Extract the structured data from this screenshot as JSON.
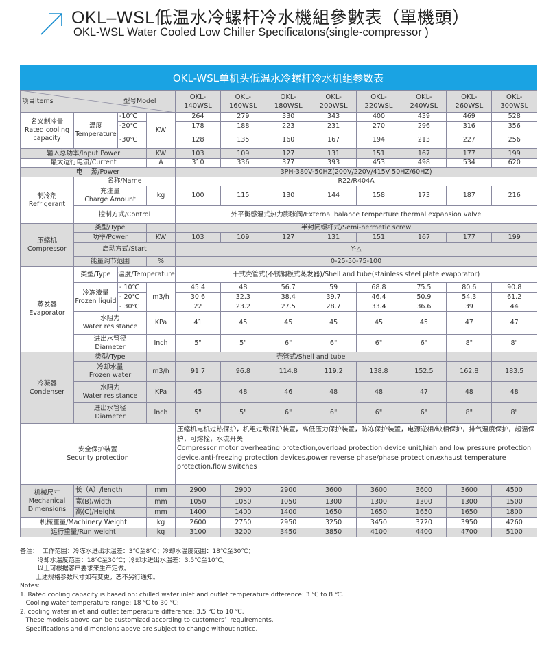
{
  "header": {
    "title_cn": "OKL–WSL低温水冷螺杆冷水機組參數表（單機頭）",
    "title_en": "OKL-WSL Water Cooled Low Chiller Specificatons(single-compressor )",
    "band": "OKL-WSL单机头低温水冷螺杆冷水机组参数表",
    "accent": "#1aa3e3"
  },
  "table": {
    "items": "项目Items",
    "model": "型号Model",
    "models": [
      "OKL-\n140WSL",
      "OKL-\n160WSL",
      "OKL-\n180WSL",
      "OKL-\n200WSL",
      "OKL-\n220WSL",
      "OKL-\n240WSL",
      "OKL-\n260WSL",
      "OKL-\n300WSL"
    ],
    "rated": {
      "label_cn": "名义制冷量",
      "label_en": "Rated cooling capacity",
      "temp_cn": "温度",
      "temp_en": "Temperature",
      "t1": "-10℃",
      "t2": "-20℃",
      "t3": "-30℃",
      "unit": "KW",
      "v1": [
        "264",
        "279",
        "330",
        "343",
        "400",
        "439",
        "469",
        "528"
      ],
      "v2": [
        "178",
        "188",
        "223",
        "231",
        "270",
        "296",
        "316",
        "356"
      ],
      "v3": [
        "128",
        "135",
        "160",
        "167",
        "194",
        "213",
        "227",
        "256"
      ]
    },
    "input_power": {
      "label": "输入总功率/Input Power",
      "unit": "KW",
      "values": [
        "103",
        "109",
        "127",
        "131",
        "151",
        "167",
        "177",
        "199"
      ]
    },
    "current": {
      "label": "最大运行电流/Current",
      "unit": "A",
      "values": [
        "310",
        "336",
        "377",
        "393",
        "453",
        "498",
        "534",
        "620"
      ]
    },
    "power": {
      "label": "电　 源/Power",
      "value": "3PH-380V-50HZ(200V/220V/415V  50HZ/60HZ)"
    },
    "refrigerant": {
      "label_cn": "制冷剂",
      "label_en": "Refrigerant",
      "name_label": "名称/Name",
      "name_value": "R22/R404A",
      "charge_cn": "充注量",
      "charge_en": "Charge Amount",
      "unit": "kg",
      "charge": [
        "100",
        "115",
        "130",
        "144",
        "158",
        "173",
        "187",
        "216"
      ],
      "control_label": "控制方式/Control",
      "control_value": "外平衡感温式热力膨胀阀/External balance temperture thermal expansion valve"
    },
    "compressor": {
      "label_cn": "压缩机",
      "label_en": "Compressor",
      "type_label": "类型/Type",
      "type_value": "半封闭螺杆式/Semi-hermetic screw",
      "power_label": "功率/Power",
      "unit": "KW",
      "power": [
        "103",
        "109",
        "127",
        "131",
        "151",
        "167",
        "177",
        "199"
      ],
      "start_label": "启动方式/Start",
      "start_value": "Y-△",
      "energy_label": "能量调节范围",
      "energy_unit": "%",
      "energy_value": "0-25-50-75-100"
    },
    "evaporator": {
      "label_cn": "蒸发器",
      "label_en": "Evaporator",
      "type_label": "类型/Type",
      "temp_label": "温度/Temperature",
      "type_value": "干式壳管式(不锈钢板式蒸发器)/Shell and tube(stainless steel plate evaporator)",
      "frozen_cn": "冷冻液量",
      "frozen_en": "Frozen liquid",
      "t1": "- 10℃",
      "t2": "- 20℃",
      "t3": "- 30℃",
      "unit": "m3/h",
      "f1": [
        "45.4",
        "48",
        "56.7",
        "59",
        "68.8",
        "75.5",
        "80.6",
        "90.8"
      ],
      "f2": [
        "30.6",
        "32.3",
        "38.4",
        "39.7",
        "46.4",
        "50.9",
        "54.3",
        "61.2"
      ],
      "f3": [
        "22",
        "23.2",
        "27.5",
        "28.7",
        "33.4",
        "36.6",
        "39",
        "44"
      ],
      "res_cn": "水阻力",
      "res_en": "Water resistance",
      "res_unit": "KPa",
      "res": [
        "41",
        "45",
        "45",
        "45",
        "45",
        "45",
        "47",
        "47"
      ],
      "dia_cn": "进出水管径",
      "dia_en": "Diameter",
      "dia_unit": "Inch",
      "dia": [
        "5\"",
        "5\"",
        "6\"",
        "6\"",
        "6\"",
        "6\"",
        "8\"",
        "8\""
      ]
    },
    "condenser": {
      "label_cn": "冷凝器",
      "label_en": "Condenser",
      "type_label": "类型/Type",
      "type_value": "壳管式/Shell and tube",
      "water_cn": "冷却水量",
      "water_en": "Frozen water",
      "unit": "m3/h",
      "water": [
        "91.7",
        "96.8",
        "114.8",
        "119.2",
        "138.8",
        "152.5",
        "162.8",
        "183.5"
      ],
      "res_cn": "水阻力",
      "res_en": "Water resistance",
      "res_unit": "KPa",
      "res": [
        "45",
        "48",
        "46",
        "48",
        "48",
        "47",
        "48",
        "48"
      ],
      "dia_cn": "进出水管径",
      "dia_en": "Diameter",
      "dia_unit": "Inch",
      "dia": [
        "5\"",
        "5\"",
        "6\"",
        "6\"",
        "6\"",
        "6\"",
        "8\"",
        "8\""
      ]
    },
    "security": {
      "label_cn": "安全保护装置",
      "label_en": "Security protection",
      "text_cn": "压缩机电机过热保护，机组过载保护装置，高低压力保护装置，防冻保护装置，电源逆相/缺相保护，排气温度保护，超温保护，可熔栓，水流开关",
      "text_en": "Compressor motor overheating protection,overload protection device unit,hiah and low pressure protection device,anti-freezing protection devices,power reverse phase/phase protection,exhaust temperature protection,flow switches"
    },
    "dimensions": {
      "label_cn": "机械尺寸",
      "label_en1": "Mechanical",
      "label_en2": "Dimensions",
      "unit": "mm",
      "length_label": "长（A）/length",
      "length": [
        "2900",
        "2900",
        "2900",
        "3600",
        "3600",
        "3600",
        "3600",
        "4500"
      ],
      "width_label": "宽(B)/width",
      "width": [
        "1050",
        "1050",
        "1050",
        "1300",
        "1300",
        "1300",
        "1300",
        "1500"
      ],
      "height_label": "高(C)/Height",
      "height": [
        "1400",
        "1400",
        "1400",
        "1650",
        "1650",
        "1650",
        "1650",
        "1800"
      ]
    },
    "machinery_weight": {
      "label": "机械重量/Machinery Weight",
      "unit": "kg",
      "values": [
        "2600",
        "2750",
        "2950",
        "3250",
        "3450",
        "3720",
        "3950",
        "4260"
      ]
    },
    "run_weight": {
      "label": "运行重量/Run weight",
      "unit": "kg",
      "values": [
        "3100",
        "3200",
        "3450",
        "3850",
        "4100",
        "4400",
        "4700",
        "5100"
      ]
    }
  },
  "notes": [
    "备注：  工作范围：冷冻水进出水温差：3℃至8℃；冷却水温度范围：18℃至30℃；",
    "         冷却水温度范围：18℃至30℃；冷却水进出水温差：3.5℃至10℃。",
    "         以上可根据客户要求来生产定做。",
    "        上述规格参数尺寸如有变更，恕不另行通知。",
    "Notes:",
    "1. Rated cooling capacity is based on: chilled water inlet and outlet temperature difference: 3 ℃ to 8 ℃.",
    "   Cooling water temperature range: 18 ℃ to 30 ℃;",
    "2. cooling water inlet and outlet temperature difference: 3.5 ℃ to 10 ℃.",
    "   These models above can be customized according to customers’  requirements.",
    "   Specifications and dimensions above are subject to change without notice."
  ]
}
